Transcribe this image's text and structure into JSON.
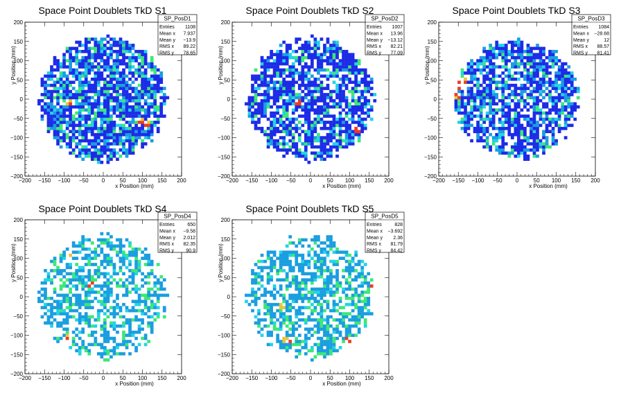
{
  "chart_data": [
    {
      "type": "heatmap",
      "title": "Space Point Doublets TkD S1",
      "xlabel": "x Position (mm)",
      "ylabel": "y Position (mm)",
      "xlim": [
        -200,
        200
      ],
      "ylim": [
        -200,
        200
      ],
      "xticks": [
        "−200",
        "−150",
        "−100",
        "−50",
        "0",
        "50",
        "100",
        "150",
        "200"
      ],
      "yticks": [
        "−200",
        "−150",
        "−100",
        "−50",
        "0",
        "50",
        "100",
        "150",
        "200"
      ],
      "stats": {
        "name": "SP_PosD1",
        "rows": [
          [
            "Entries",
            "1108"
          ],
          [
            "Mean x",
            "7.937"
          ],
          [
            "Mean y",
            "−13.9"
          ],
          [
            "RMS x",
            "89.22"
          ],
          [
            "RMS y",
            "78.65"
          ]
        ]
      },
      "disk_radius": 165,
      "seed": 11,
      "fill_fraction": 0.78,
      "palette": [
        "#1d2be8",
        "#1d2be8",
        "#1d2be8",
        "#1a9ee0",
        "#1a9ee0",
        "#21d4e6",
        "#3ce876",
        "#e8c43a",
        "#ef3b1f"
      ],
      "hotspots": [
        [
          95,
          -55
        ],
        [
          110,
          -65
        ],
        [
          -90,
          -10
        ]
      ]
    },
    {
      "type": "heatmap",
      "title": "Space Point Doublets TkD S2",
      "xlabel": "x Position (mm)",
      "ylabel": "y Position (mm)",
      "xlim": [
        -200,
        200
      ],
      "ylim": [
        -200,
        200
      ],
      "xticks": [
        "−200",
        "−150",
        "−100",
        "−50",
        "0",
        "50",
        "100",
        "150",
        "200"
      ],
      "yticks": [
        "−200",
        "−150",
        "−100",
        "−50",
        "0",
        "50",
        "100",
        "150",
        "200"
      ],
      "stats": {
        "name": "SP_PosD2",
        "rows": [
          [
            "Entries",
            "1007"
          ],
          [
            "Mean x",
            "13.96"
          ],
          [
            "Mean y",
            "−13.12"
          ],
          [
            "RMS x",
            "82.21"
          ],
          [
            "RMS y",
            "77.09"
          ]
        ]
      },
      "disk_radius": 165,
      "seed": 23,
      "fill_fraction": 0.72,
      "palette": [
        "#1d2be8",
        "#1d2be8",
        "#1d2be8",
        "#1d2be8",
        "#1a9ee0",
        "#21d4e6",
        "#3ce876",
        "#e8c43a",
        "#ef3b1f"
      ],
      "hotspots": [
        [
          120,
          -80
        ],
        [
          -30,
          -10
        ]
      ]
    },
    {
      "type": "heatmap",
      "title": "Space Point Doublets TkD S3",
      "xlabel": "x Position (mm)",
      "ylabel": "y Position (mm)",
      "xlim": [
        -200,
        200
      ],
      "ylim": [
        -200,
        200
      ],
      "xticks": [
        "−200",
        "−150",
        "−100",
        "−50",
        "0",
        "50",
        "100",
        "150",
        "200"
      ],
      "yticks": [
        "−200",
        "−150",
        "−100",
        "−50",
        "0",
        "50",
        "100",
        "150",
        "200"
      ],
      "stats": {
        "name": "SP_PosD3",
        "rows": [
          [
            "Entries",
            "1084"
          ],
          [
            "Mean x",
            "−28.68"
          ],
          [
            "Mean y",
            "12"
          ],
          [
            "RMS x",
            "88.57"
          ],
          [
            "RMS y",
            "81.41"
          ]
        ]
      },
      "disk_radius": 160,
      "seed": 37,
      "fill_fraction": 0.7,
      "palette": [
        "#1d2be8",
        "#1d2be8",
        "#1d2be8",
        "#1a9ee0",
        "#1a9ee0",
        "#21d4e6",
        "#3ce876",
        "#e8c43a",
        "#ef3b1f"
      ],
      "hotspots": [
        [
          -150,
          30
        ],
        [
          -155,
          10
        ],
        [
          -140,
          50
        ]
      ]
    },
    {
      "type": "heatmap",
      "title": "Space Point Doublets TkD S4",
      "xlabel": "x Position (mm)",
      "ylabel": "y Position (mm)",
      "xlim": [
        -200,
        200
      ],
      "ylim": [
        -200,
        200
      ],
      "xticks": [
        "−200",
        "−150",
        "−100",
        "−50",
        "0",
        "50",
        "100",
        "150",
        "200"
      ],
      "yticks": [
        "−200",
        "−150",
        "−100",
        "−50",
        "0",
        "50",
        "100",
        "150",
        "200"
      ],
      "stats": {
        "name": "SP_PosD4",
        "rows": [
          [
            "Entries",
            "650"
          ],
          [
            "Mean x",
            "−9.58"
          ],
          [
            "Mean y",
            "2.012"
          ],
          [
            "RMS x",
            "82.35"
          ],
          [
            "RMS y",
            "90.9"
          ]
        ]
      },
      "disk_radius": 165,
      "seed": 53,
      "fill_fraction": 0.5,
      "palette": [
        "#1a9ee0",
        "#1a9ee0",
        "#1a9ee0",
        "#1a9ee0",
        "#21d4e6",
        "#3ce876",
        "#3ce876",
        "#e8c43a",
        "#ef3b1f"
      ],
      "hotspots": [
        [
          -85,
          110
        ],
        [
          -85,
          -105
        ],
        [
          -35,
          30
        ]
      ]
    },
    {
      "type": "heatmap",
      "title": "Space Point Doublets TkD S5",
      "xlabel": "x Position (mm)",
      "ylabel": "y Position (mm)",
      "xlim": [
        -200,
        200
      ],
      "ylim": [
        -200,
        200
      ],
      "xticks": [
        "−200",
        "−150",
        "−100",
        "−50",
        "0",
        "50",
        "100",
        "150",
        "200"
      ],
      "yticks": [
        "−200",
        "−150",
        "−100",
        "−50",
        "0",
        "50",
        "100",
        "150",
        "200"
      ],
      "stats": {
        "name": "SP_PosD5",
        "rows": [
          [
            "Entries",
            "828"
          ],
          [
            "Mean x",
            "−3.692"
          ],
          [
            "Mean y",
            "2.36"
          ],
          [
            "RMS x",
            "81.79"
          ],
          [
            "RMS y",
            "84.42"
          ]
        ]
      },
      "disk_radius": 165,
      "seed": 71,
      "fill_fraction": 0.55,
      "palette": [
        "#1a9ee0",
        "#1a9ee0",
        "#1a9ee0",
        "#1a9ee0",
        "#21d4e6",
        "#3ce876",
        "#3ce876",
        "#e8c43a",
        "#ef3b1f"
      ],
      "hotspots": [
        [
          160,
          30
        ],
        [
          -60,
          -110
        ],
        [
          95,
          -115
        ],
        [
          -75,
          -25
        ]
      ]
    }
  ]
}
